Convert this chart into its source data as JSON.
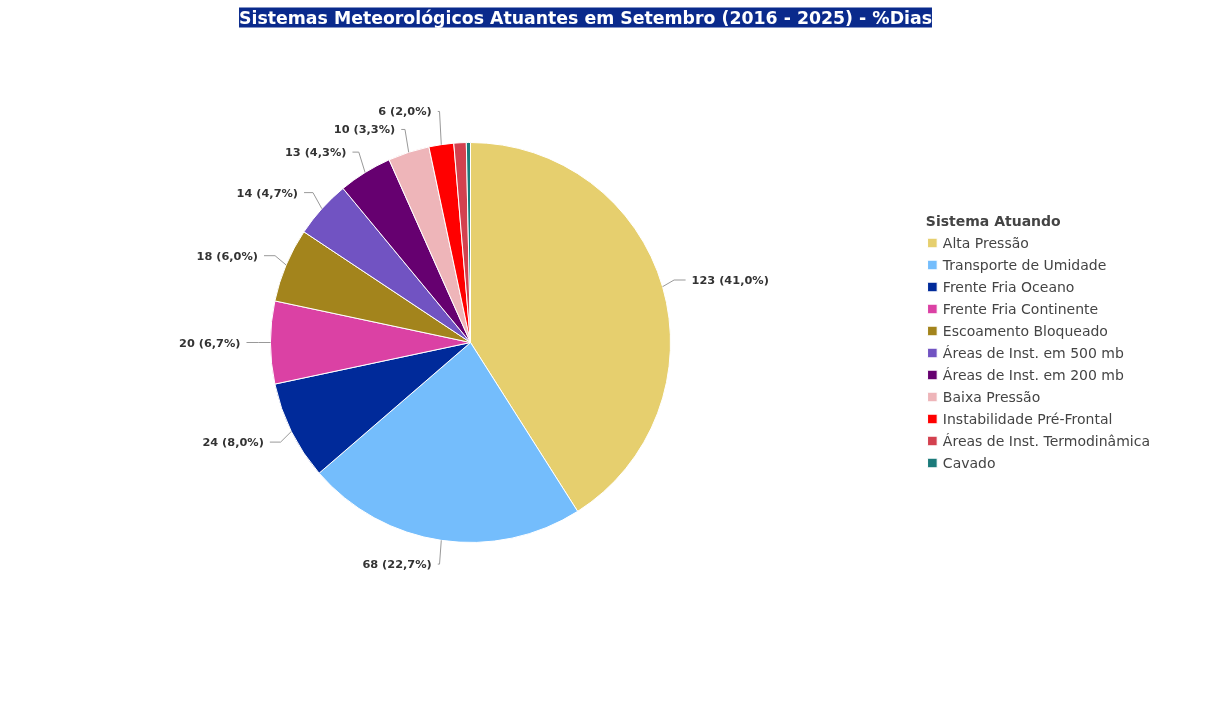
{
  "chart_data": {
    "type": "pie",
    "title": "Sistemas Meteorológicos Atuantes em Setembro (2016 - 2025) - %Dias",
    "legend_title": "Sistema Atuando",
    "legend": "right",
    "categories": [
      "Alta Pressão",
      "Transporte de Umidade",
      "Frente Fria Oceano",
      "Frente Fria Continente",
      "Escoamento Bloqueado",
      "Áreas de Inst. em 500 mb",
      "Áreas de Inst. em 200 mb",
      "Baixa Pressão",
      "Instabilidade Pré-Frontal",
      "Áreas de Inst. Termodinâmica",
      "Cavado"
    ],
    "values": [
      123,
      68,
      24,
      20,
      18,
      14,
      13,
      10,
      6,
      3,
      1
    ],
    "colors": [
      "#e6cf6e",
      "#74bdfc",
      "#002a9a",
      "#db41a4",
      "#a3841c",
      "#7153c2",
      "#660070",
      "#eeb5b9",
      "#ff0000",
      "#d3414f",
      "#1b7a7a"
    ],
    "value_labels": [
      "123 (41,0%)",
      "68 (22,7%)",
      "24 (8,0%)",
      "20 (6,7%)",
      "18 (6,0%)",
      "14 (4,7%)",
      "13 (4,3%)",
      "10 (3,3%)",
      "6 (2,0%)",
      null,
      null
    ]
  }
}
